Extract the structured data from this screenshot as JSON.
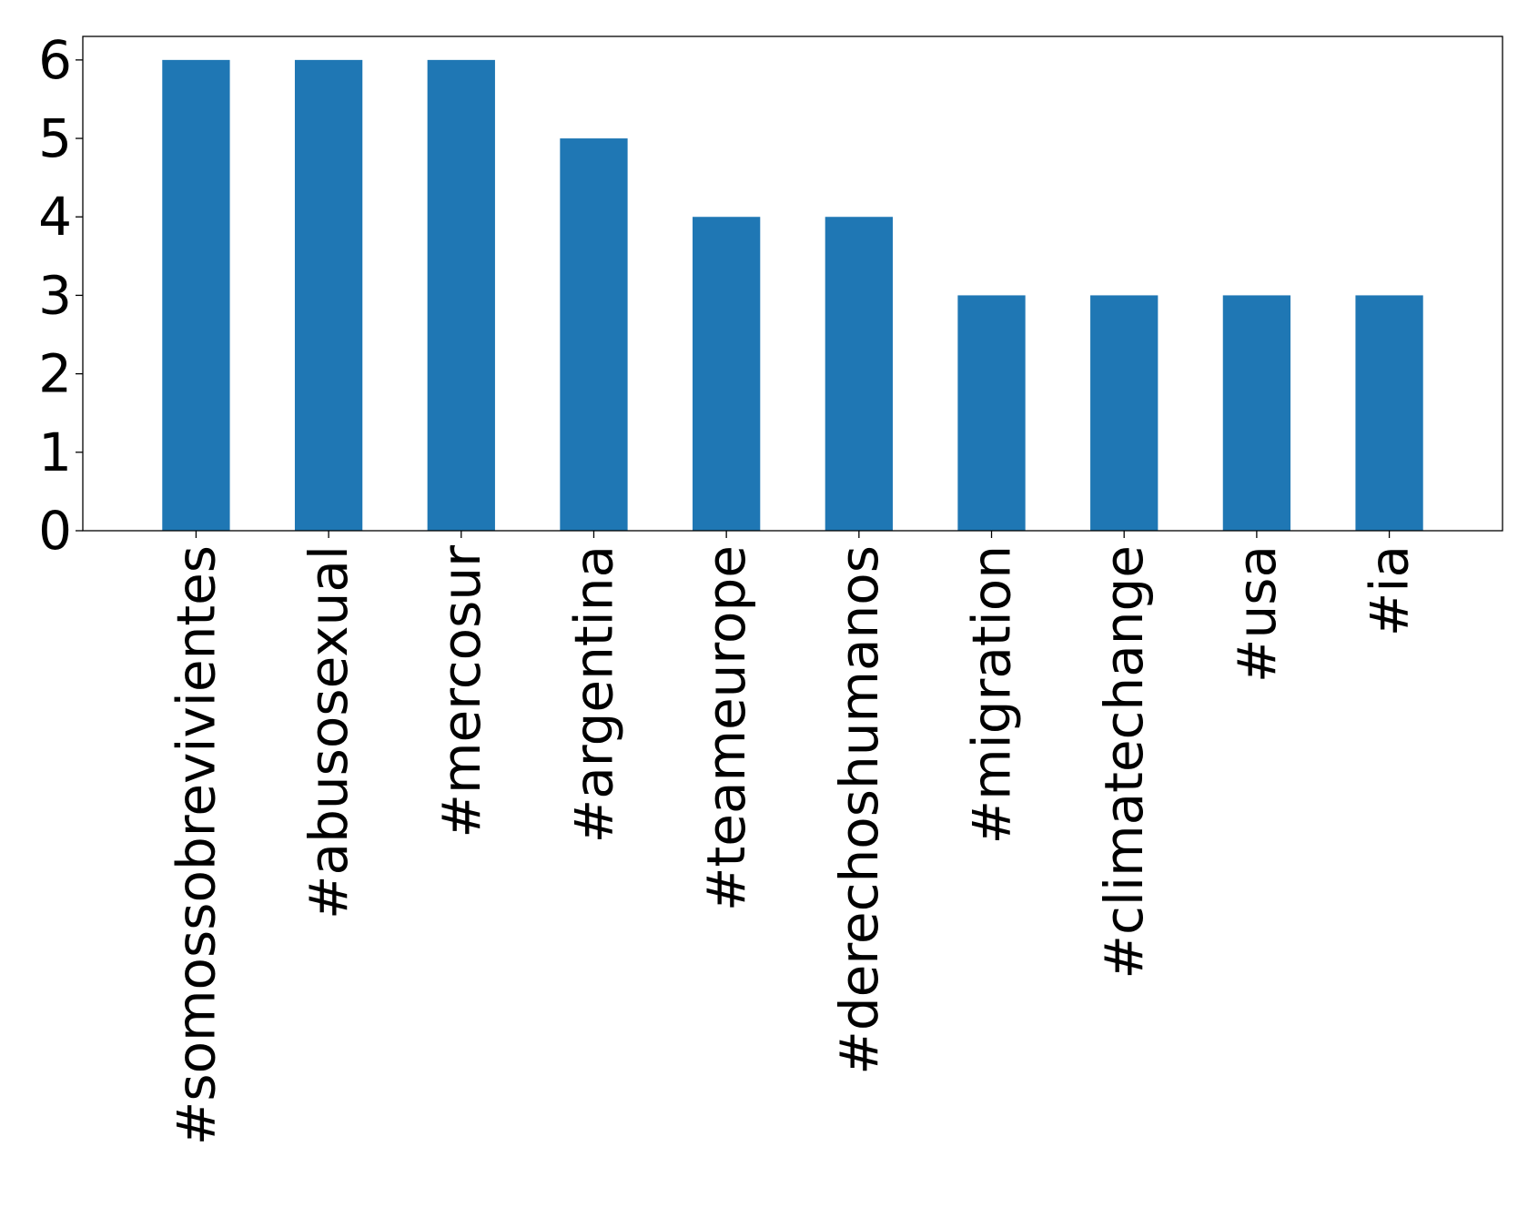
{
  "chart_data": {
    "type": "bar",
    "categories": [
      "#somossobrevivientes",
      "#abusosexual",
      "#mercosur",
      "#argentina",
      "#teameurope",
      "#derechoshumanos",
      "#migration",
      "#climatechange",
      "#usa",
      "#ia"
    ],
    "values": [
      6,
      6,
      6,
      5,
      4,
      4,
      3,
      3,
      3,
      3
    ],
    "title": "",
    "xlabel": "",
    "ylabel": "",
    "ylim": [
      0,
      6.3
    ],
    "yticks": [
      0,
      1,
      2,
      3,
      4,
      5,
      6
    ],
    "x_tick_rotation": "vertical",
    "grid": false,
    "legend": "none",
    "bar_color": "#1f77b4"
  }
}
